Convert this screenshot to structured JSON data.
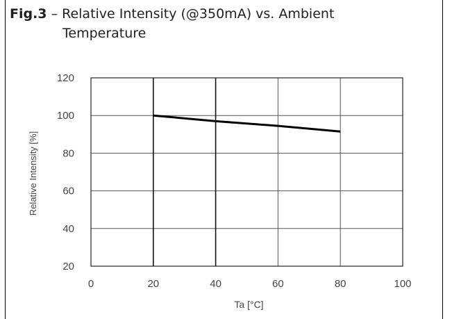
{
  "title": {
    "fig": "Fig.3",
    "rest": " – Relative Intensity (@350mA) vs. Ambient",
    "line2": "Temperature"
  },
  "chart_data": {
    "type": "line",
    "xlabel": "Ta [°C]",
    "ylabel": "Relative Intensity [%]",
    "xlim": [
      0,
      100
    ],
    "ylim": [
      20,
      120
    ],
    "xticks": [
      0,
      20,
      40,
      60,
      80,
      100
    ],
    "yticks": [
      20,
      40,
      60,
      80,
      100,
      120
    ],
    "grid": true,
    "series": [
      {
        "x": [
          20,
          40,
          60,
          80
        ],
        "y": [
          100,
          97,
          94.5,
          91.5
        ]
      }
    ]
  }
}
